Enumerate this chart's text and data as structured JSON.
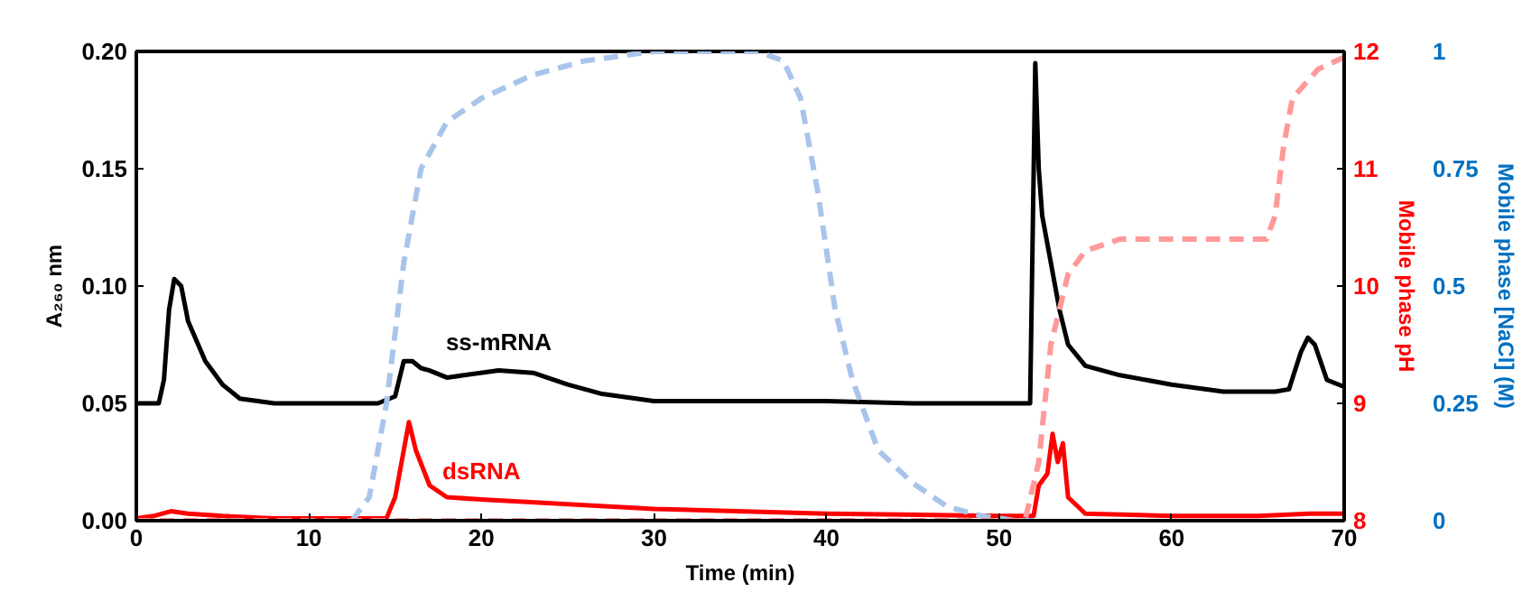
{
  "chart_data": {
    "type": "line",
    "xlabel": "Time (min)",
    "ylabel": "A₂₆₀ nm",
    "y2label": "Mobile phase pH",
    "y3label": "Mobile phase [NaCl] (M)",
    "xlim": [
      0,
      70
    ],
    "xticks": [
      0,
      10,
      20,
      30,
      40,
      50,
      60,
      70
    ],
    "ylim": [
      0,
      0.2
    ],
    "yticks": [
      {
        "value": 0,
        "label": "0.00"
      },
      {
        "value": 0.05,
        "label": "0.05"
      },
      {
        "value": 0.1,
        "label": "0.10"
      },
      {
        "value": 0.15,
        "label": "0.15"
      },
      {
        "value": 0.2,
        "label": "0.20"
      }
    ],
    "y2lim": [
      8,
      12
    ],
    "y2ticks": [
      8,
      9,
      10,
      11,
      12
    ],
    "y3lim": [
      0,
      1
    ],
    "y3ticks": [
      0,
      0.25,
      0.5,
      0.75,
      1
    ],
    "grid": false,
    "series": [
      {
        "name": "ss-mRNA",
        "color": "#000000",
        "line_style": "solid",
        "x": [
          0,
          1.3,
          1.6,
          1.9,
          2.2,
          2.6,
          3,
          4,
          5,
          6,
          8,
          14,
          15,
          15.5,
          16,
          16.5,
          17,
          18,
          19,
          21,
          23,
          25,
          27,
          30,
          35,
          40,
          45,
          50,
          51.8,
          52.1,
          52.3,
          52.5,
          53,
          53.5,
          54,
          55,
          57,
          60,
          63,
          66,
          66.8,
          67.5,
          67.9,
          68.3,
          69,
          70
        ],
        "values": [
          0.05,
          0.05,
          0.06,
          0.09,
          0.103,
          0.1,
          0.085,
          0.068,
          0.058,
          0.052,
          0.05,
          0.05,
          0.053,
          0.068,
          0.068,
          0.065,
          0.064,
          0.061,
          0.062,
          0.064,
          0.063,
          0.058,
          0.054,
          0.051,
          0.051,
          0.051,
          0.05,
          0.05,
          0.05,
          0.195,
          0.15,
          0.13,
          0.11,
          0.09,
          0.075,
          0.066,
          0.062,
          0.058,
          0.055,
          0.055,
          0.056,
          0.072,
          0.078,
          0.075,
          0.06,
          0.057
        ]
      },
      {
        "name": "dsRNA",
        "color": "#ff0000",
        "line_style": "solid",
        "x": [
          0,
          1,
          2,
          3,
          5,
          8,
          14.5,
          15,
          15.5,
          15.8,
          16.2,
          17,
          18,
          20,
          25,
          30,
          40,
          50,
          52,
          52.3,
          52.8,
          53.1,
          53.4,
          53.7,
          54,
          55,
          60,
          65,
          68,
          70
        ],
        "values": [
          0.001,
          0.002,
          0.004,
          0.003,
          0.002,
          0.001,
          0.001,
          0.01,
          0.03,
          0.042,
          0.03,
          0.015,
          0.01,
          0.009,
          0.007,
          0.005,
          0.003,
          0.002,
          0.002,
          0.015,
          0.02,
          0.037,
          0.025,
          0.033,
          0.01,
          0.003,
          0.002,
          0.002,
          0.003,
          0.003
        ]
      },
      {
        "color": "#a9c4eb",
        "line_style": "dashed",
        "axis": "y3",
        "x": [
          12.5,
          13.5,
          14.5,
          15.5,
          16.5,
          18,
          20,
          23,
          26,
          30,
          36,
          37.5,
          38.5,
          39.5,
          40.5,
          41.5,
          43,
          45,
          47,
          49,
          51,
          52
        ],
        "values": [
          0,
          0.05,
          0.25,
          0.55,
          0.75,
          0.85,
          0.9,
          0.95,
          0.98,
          1.0,
          1.0,
          0.98,
          0.9,
          0.7,
          0.45,
          0.3,
          0.15,
          0.08,
          0.03,
          0.01,
          0,
          0
        ]
      },
      {
        "color": "#ff9999",
        "line_style": "dashed",
        "axis": "y2",
        "x": [
          0,
          51.5,
          52.3,
          53,
          54,
          55,
          57,
          62,
          65.5,
          66,
          66.5,
          67,
          68.5,
          70
        ],
        "values": [
          8,
          8,
          8.5,
          9.5,
          10.1,
          10.3,
          10.4,
          10.4,
          10.4,
          10.6,
          11.2,
          11.6,
          11.85,
          11.95
        ]
      }
    ]
  }
}
